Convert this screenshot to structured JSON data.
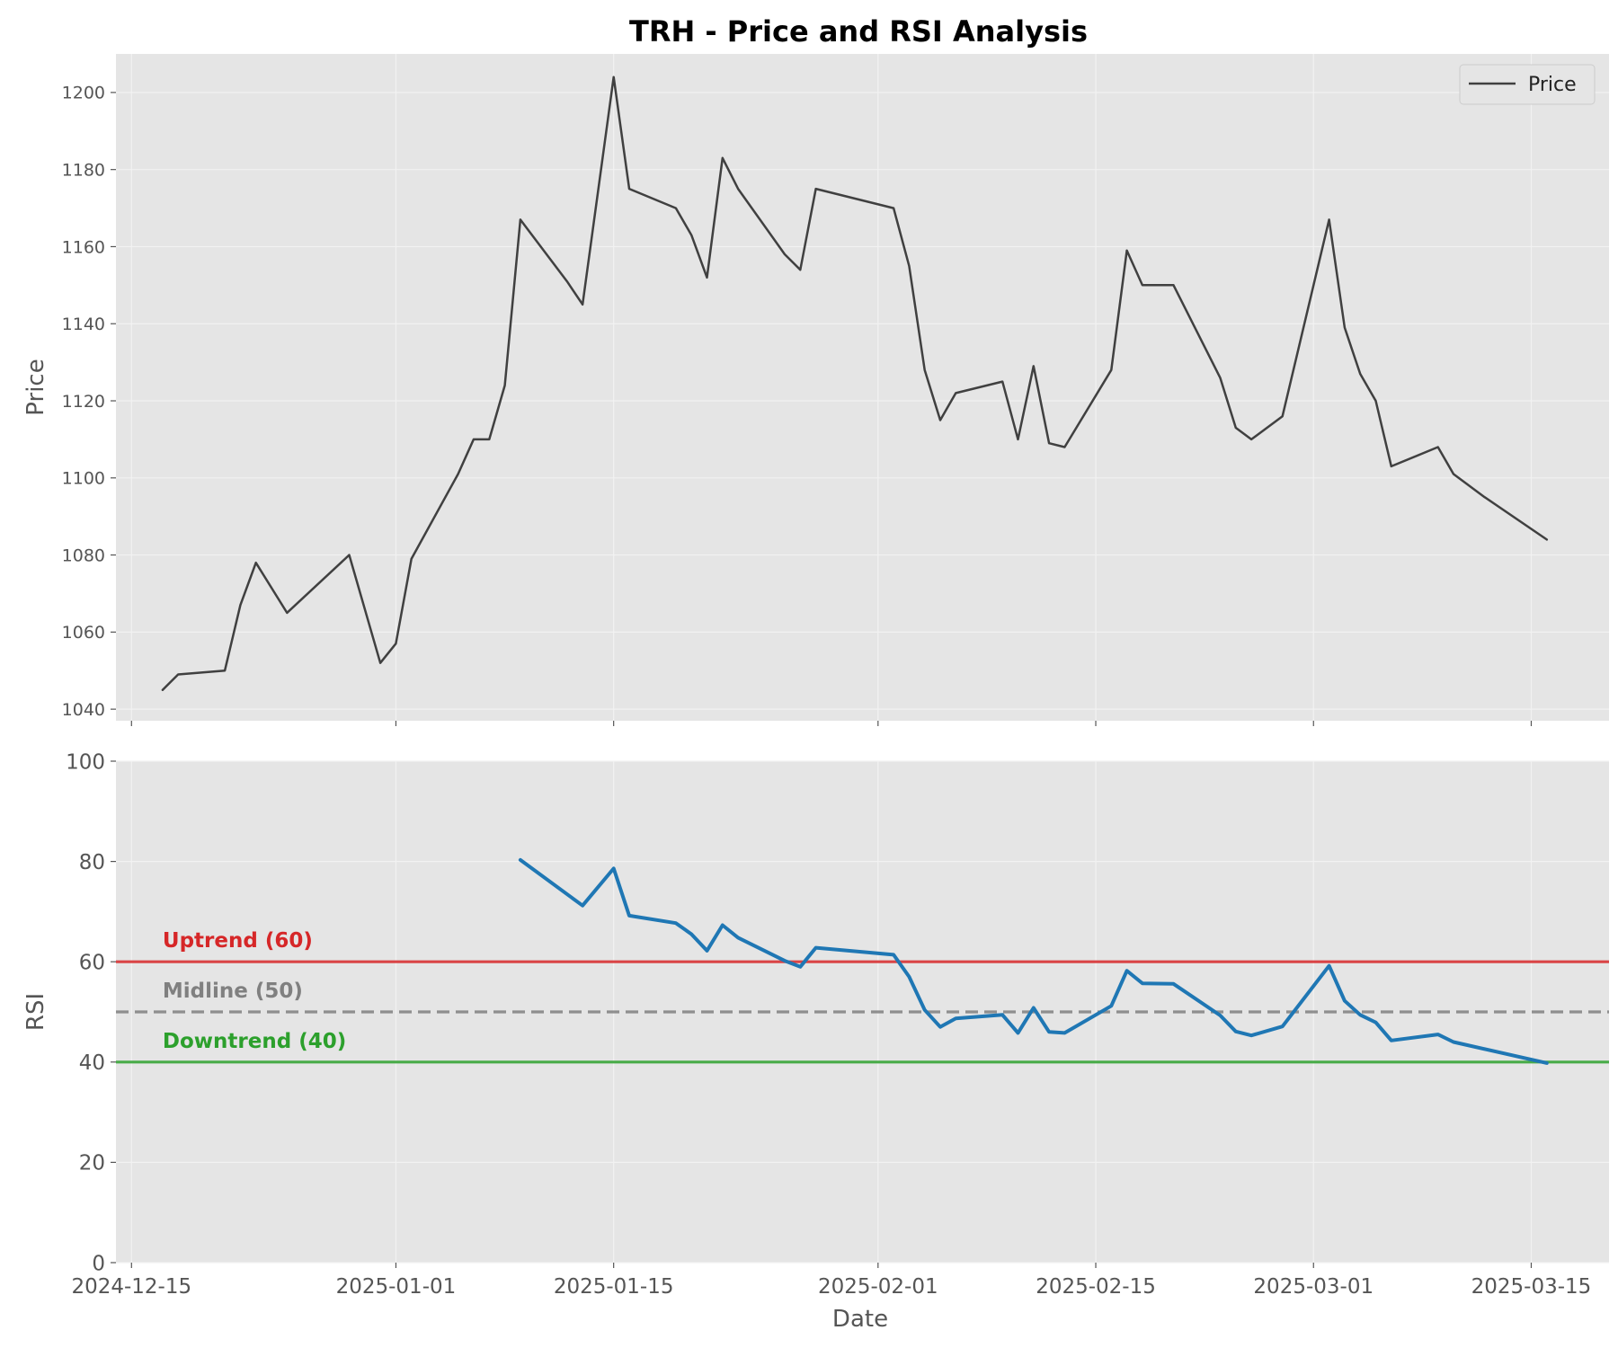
{
  "chart_data": {
    "type": "line",
    "title": "TRH - Price and RSI Analysis",
    "xlabel": "Date",
    "x_tick_labels": [
      "2024-12-15",
      "2025-01-01",
      "2025-01-15",
      "2025-02-01",
      "2025-02-15",
      "2025-03-01",
      "2025-03-15"
    ],
    "x_range": [
      "2024-12-14",
      "2025-03-20"
    ],
    "grid": true,
    "panels": [
      {
        "name": "price",
        "ylabel": "Price",
        "ylim": [
          1037,
          1210
        ],
        "y_ticks": [
          1040,
          1060,
          1080,
          1100,
          1120,
          1140,
          1160,
          1180,
          1200
        ],
        "legend": {
          "position": "top-right",
          "entries": [
            "Price"
          ]
        },
        "series": [
          {
            "name": "Price",
            "color": "#404040",
            "points": [
              [
                "2024-12-17",
                1045
              ],
              [
                "2024-12-18",
                1049
              ],
              [
                "2024-12-21",
                1050
              ],
              [
                "2024-12-22",
                1067
              ],
              [
                "2024-12-23",
                1078
              ],
              [
                "2024-12-25",
                1065
              ],
              [
                "2024-12-29",
                1080
              ],
              [
                "2024-12-31",
                1052
              ],
              [
                "2025-01-01",
                1057
              ],
              [
                "2025-01-02",
                1079
              ],
              [
                "2025-01-05",
                1101
              ],
              [
                "2025-01-06",
                1110
              ],
              [
                "2025-01-07",
                1110
              ],
              [
                "2025-01-08",
                1124
              ],
              [
                "2025-01-09",
                1167
              ],
              [
                "2025-01-12",
                1151
              ],
              [
                "2025-01-13",
                1145
              ],
              [
                "2025-01-15",
                1204
              ],
              [
                "2025-01-16",
                1175
              ],
              [
                "2025-01-19",
                1170
              ],
              [
                "2025-01-20",
                1163
              ],
              [
                "2025-01-21",
                1152
              ],
              [
                "2025-01-22",
                1183
              ],
              [
                "2025-01-23",
                1175
              ],
              [
                "2025-01-26",
                1158
              ],
              [
                "2025-01-27",
                1154
              ],
              [
                "2025-01-28",
                1175
              ],
              [
                "2025-02-02",
                1170
              ],
              [
                "2025-02-03",
                1155
              ],
              [
                "2025-02-04",
                1128
              ],
              [
                "2025-02-05",
                1115
              ],
              [
                "2025-02-06",
                1122
              ],
              [
                "2025-02-09",
                1125
              ],
              [
                "2025-02-10",
                1110
              ],
              [
                "2025-02-11",
                1129
              ],
              [
                "2025-02-12",
                1109
              ],
              [
                "2025-02-13",
                1108
              ],
              [
                "2025-02-16",
                1128
              ],
              [
                "2025-02-17",
                1159
              ],
              [
                "2025-02-18",
                1150
              ],
              [
                "2025-02-20",
                1150
              ],
              [
                "2025-02-23",
                1126
              ],
              [
                "2025-02-24",
                1113
              ],
              [
                "2025-02-25",
                1110
              ],
              [
                "2025-02-27",
                1116
              ],
              [
                "2025-03-02",
                1167
              ],
              [
                "2025-03-03",
                1139
              ],
              [
                "2025-03-04",
                1127
              ],
              [
                "2025-03-05",
                1120
              ],
              [
                "2025-03-06",
                1103
              ],
              [
                "2025-03-09",
                1108
              ],
              [
                "2025-03-10",
                1101
              ],
              [
                "2025-03-12",
                1095
              ],
              [
                "2025-03-16",
                1084
              ]
            ]
          }
        ]
      },
      {
        "name": "rsi",
        "ylabel": "RSI",
        "ylim": [
          0,
          100
        ],
        "y_ticks": [
          0,
          20,
          40,
          60,
          80,
          100
        ],
        "series": [
          {
            "name": "RSI",
            "color": "#1f77b4",
            "points": [
              [
                "2025-01-09",
                80.3
              ],
              [
                "2025-01-13",
                71.2
              ],
              [
                "2025-01-15",
                78.6
              ],
              [
                "2025-01-16",
                69.2
              ],
              [
                "2025-01-19",
                67.7
              ],
              [
                "2025-01-20",
                65.5
              ],
              [
                "2025-01-21",
                62.2
              ],
              [
                "2025-01-22",
                67.3
              ],
              [
                "2025-01-23",
                64.8
              ],
              [
                "2025-01-26",
                60.2
              ],
              [
                "2025-01-27",
                59.0
              ],
              [
                "2025-01-28",
                62.8
              ],
              [
                "2025-02-02",
                61.4
              ],
              [
                "2025-02-03",
                57.0
              ],
              [
                "2025-02-04",
                50.4
              ],
              [
                "2025-02-05",
                47.0
              ],
              [
                "2025-02-06",
                48.7
              ],
              [
                "2025-02-09",
                49.4
              ],
              [
                "2025-02-10",
                45.8
              ],
              [
                "2025-02-11",
                50.8
              ],
              [
                "2025-02-12",
                46.0
              ],
              [
                "2025-02-13",
                45.8
              ],
              [
                "2025-02-16",
                51.2
              ],
              [
                "2025-02-17",
                58.2
              ],
              [
                "2025-02-18",
                55.7
              ],
              [
                "2025-02-20",
                55.6
              ],
              [
                "2025-02-23",
                49.3
              ],
              [
                "2025-02-24",
                46.1
              ],
              [
                "2025-02-25",
                45.3
              ],
              [
                "2025-02-27",
                47.1
              ],
              [
                "2025-03-02",
                59.2
              ],
              [
                "2025-03-03",
                52.2
              ],
              [
                "2025-03-04",
                49.4
              ],
              [
                "2025-03-05",
                47.9
              ],
              [
                "2025-03-06",
                44.3
              ],
              [
                "2025-03-09",
                45.5
              ],
              [
                "2025-03-10",
                44.0
              ],
              [
                "2025-03-16",
                39.8
              ]
            ]
          }
        ],
        "reference_lines": [
          {
            "label": "Uptrend (60)",
            "value": 60,
            "color": "#d62728",
            "style": "solid"
          },
          {
            "label": "Midline (50)",
            "value": 50,
            "color": "#808080",
            "style": "dashed"
          },
          {
            "label": "Downtrend (40)",
            "value": 40,
            "color": "#2ca02c",
            "style": "solid"
          }
        ]
      }
    ]
  }
}
